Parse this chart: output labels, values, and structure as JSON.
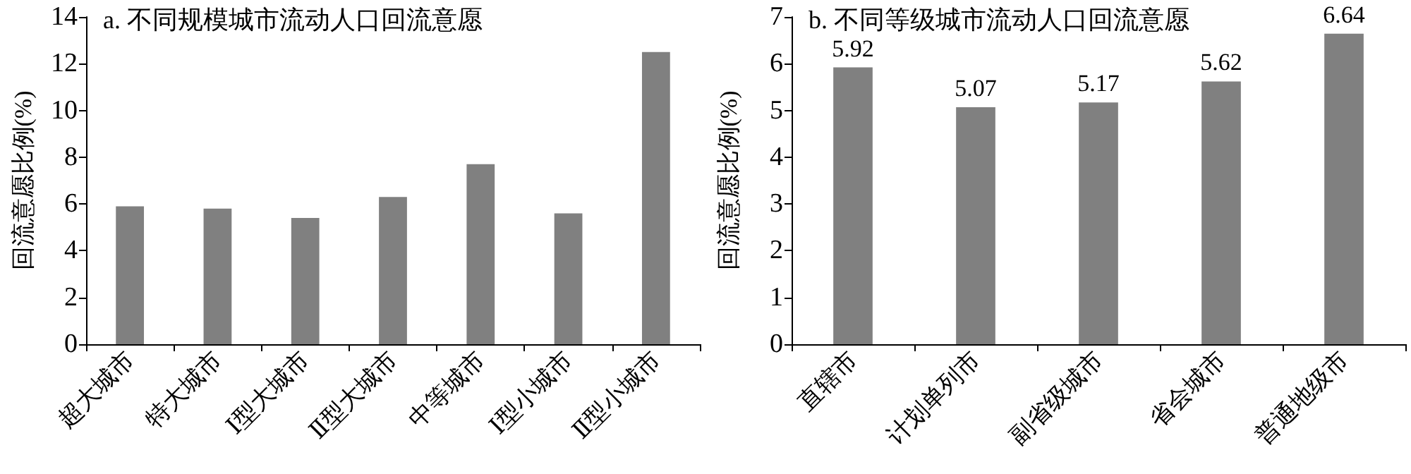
{
  "chart_data": [
    {
      "type": "bar",
      "title": "a. 不同规模城市流动人口回流意愿",
      "ylabel": "回流意愿比例(%)",
      "categories": [
        "超大城市",
        "特大城市",
        "Ⅰ型大城市",
        "Ⅱ型大城市",
        "中等城市",
        "Ⅰ型小城市",
        "Ⅱ型小城市"
      ],
      "values": [
        5.9,
        5.8,
        5.4,
        6.3,
        7.7,
        5.6,
        12.5
      ],
      "color": "#808080",
      "ylim": [
        0,
        14
      ],
      "yticks": [
        0,
        2,
        4,
        6,
        8,
        10,
        12,
        14
      ]
    },
    {
      "type": "bar",
      "title": "b. 不同等级城市流动人口回流意愿",
      "ylabel": "回流意愿比例(%)",
      "categories": [
        "直辖市",
        "计划单列市",
        "副省级城市",
        "省会城市",
        "普通地级市"
      ],
      "values": [
        5.92,
        5.07,
        5.17,
        5.62,
        6.64
      ],
      "color": "#808080",
      "ylim": [
        0,
        7
      ],
      "yticks": [
        0,
        1,
        2,
        3,
        4,
        5,
        6,
        7
      ],
      "data_labels": true
    }
  ]
}
